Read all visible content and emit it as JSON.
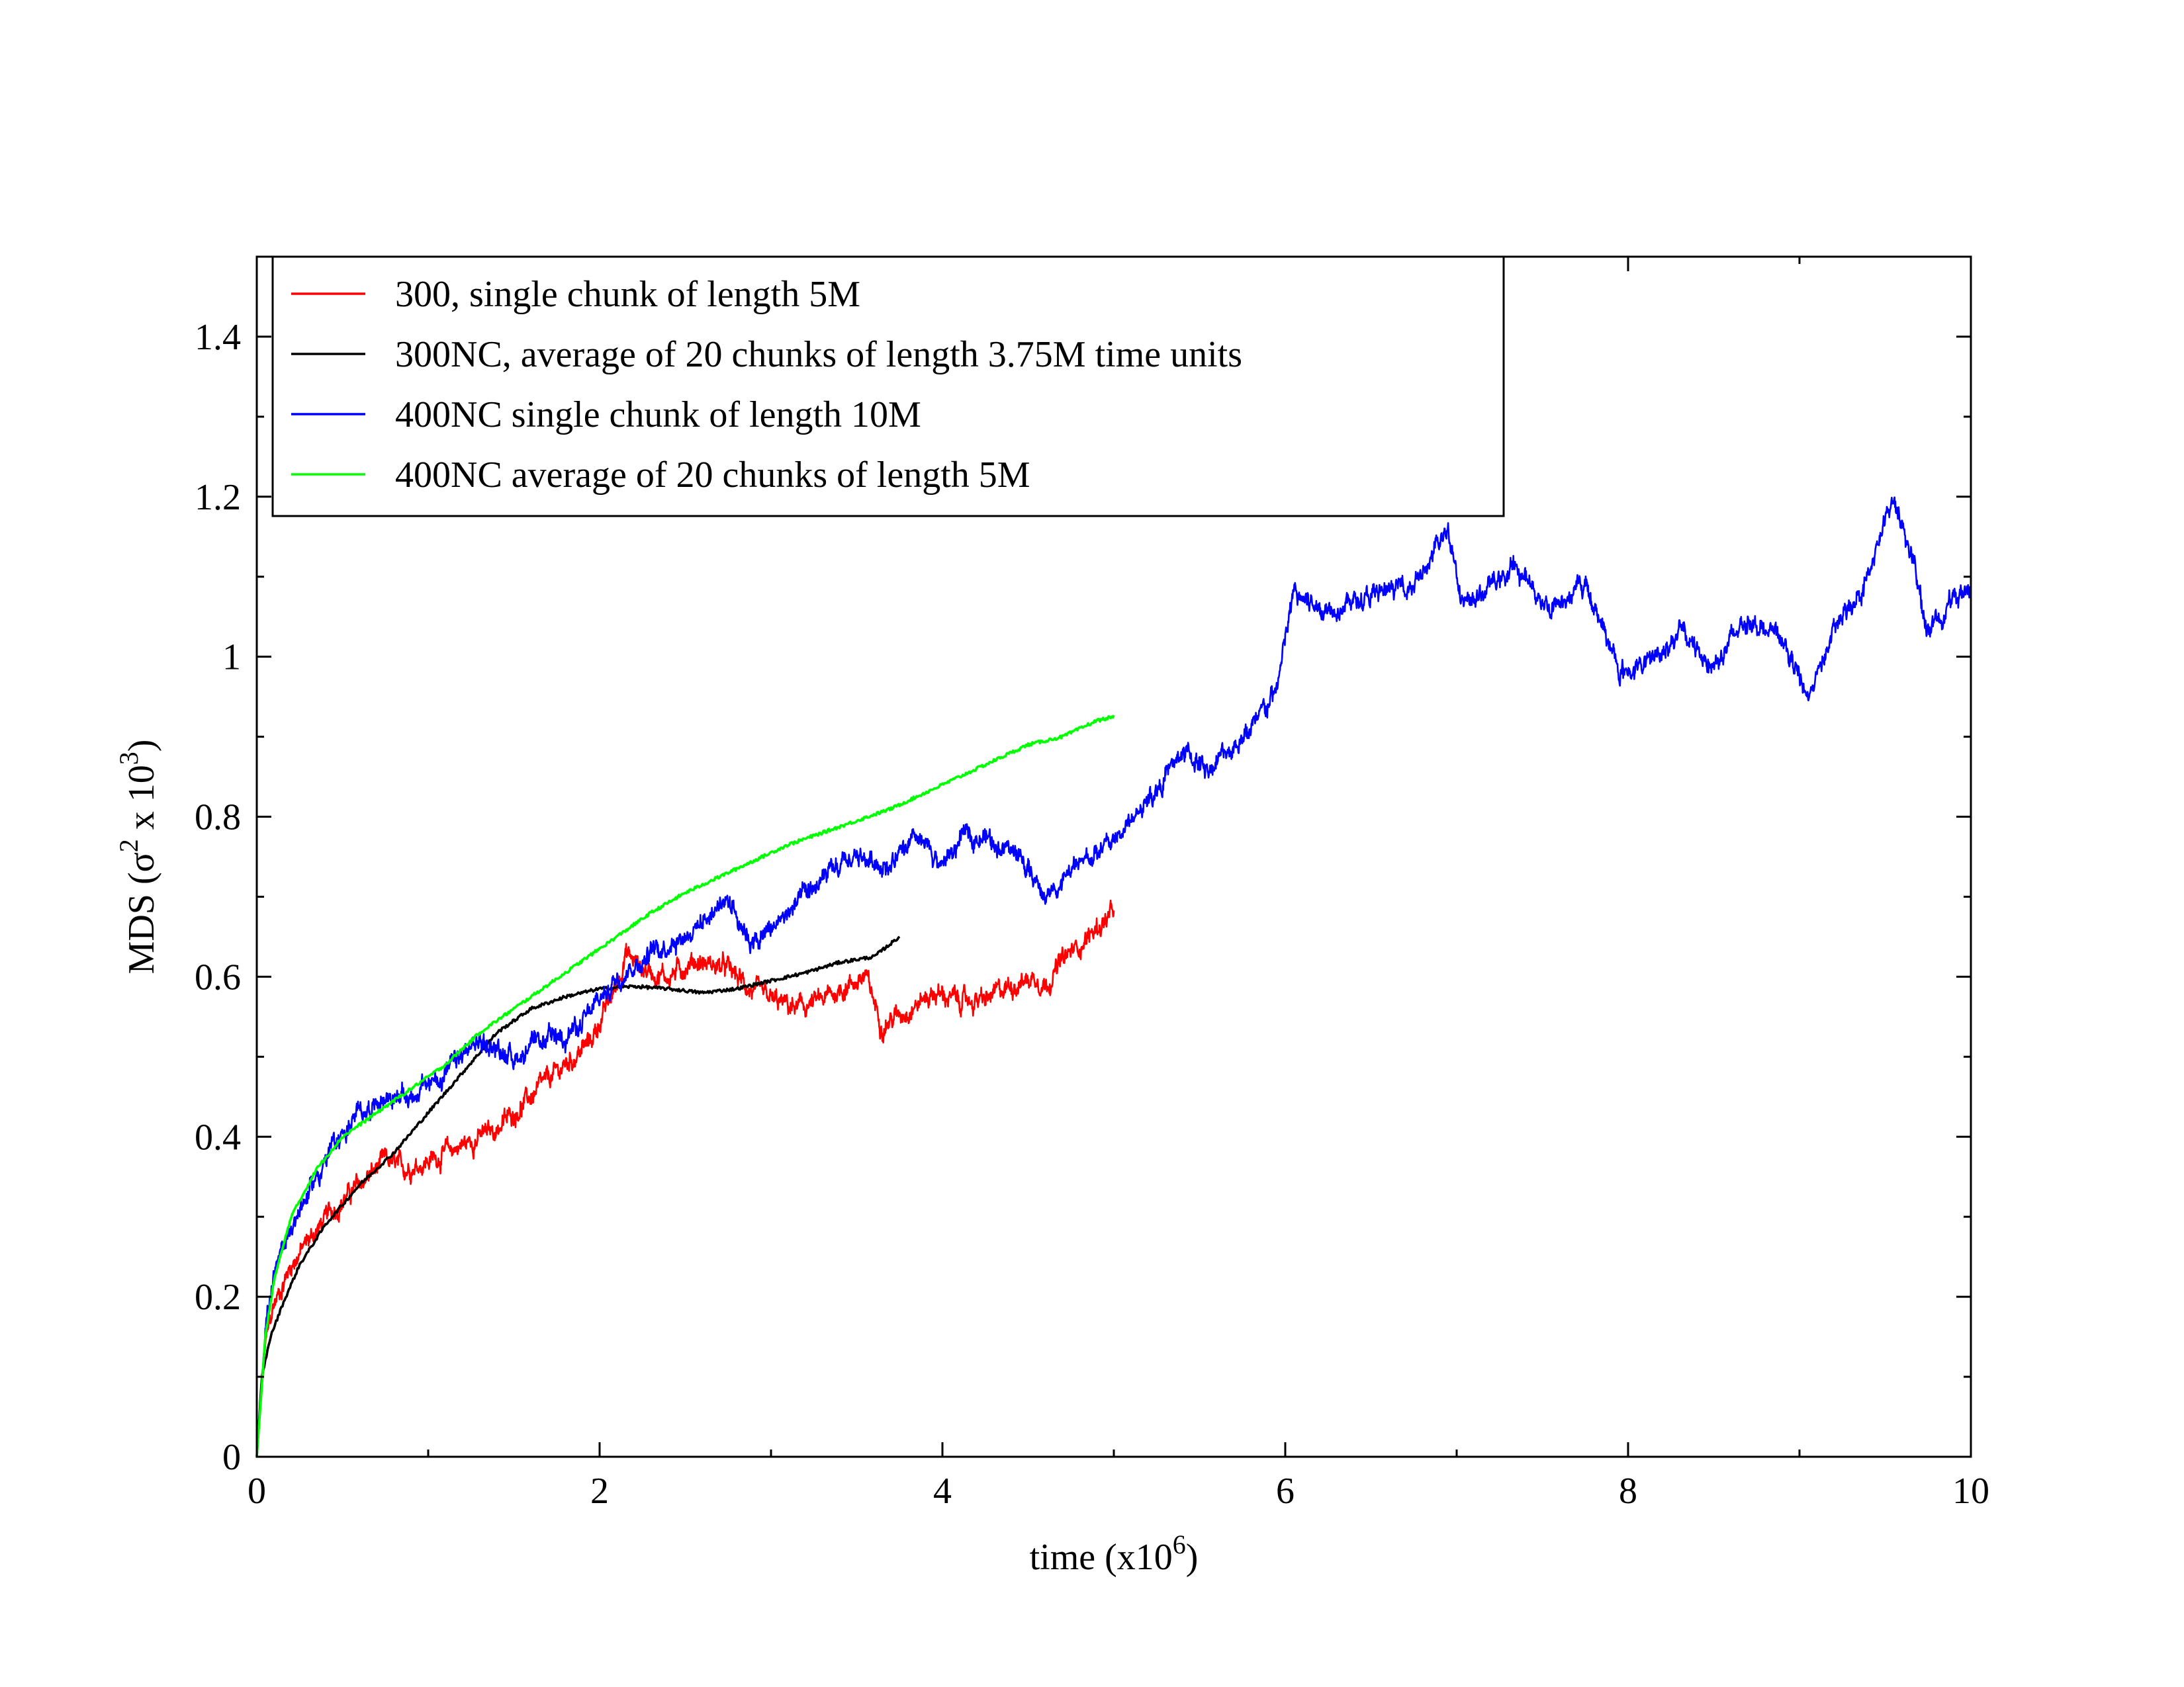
{
  "chart_data": {
    "type": "line",
    "title": "",
    "xlabel": "time (x10^6)",
    "ylabel": "MDS (σ^2 x 10^3)",
    "xlim": [
      0,
      10
    ],
    "ylim": [
      0,
      1.5
    ],
    "xticks": [
      0,
      2,
      4,
      6,
      8,
      10
    ],
    "yticks": [
      0,
      0.2,
      0.4,
      0.6,
      0.8,
      1,
      1.2,
      1.4
    ],
    "xtick_labels": [
      "0",
      "2",
      "4",
      "6",
      "8",
      "10"
    ],
    "ytick_labels": [
      "0",
      "0.2",
      "0.4",
      "0.6",
      "0.8",
      "1",
      "1.2",
      "1.4"
    ],
    "grid": false,
    "legend_position": "top-left",
    "series": [
      {
        "name": "300, single chunk of length 5M",
        "color": "#ff0000",
        "noisy": true,
        "x": [
          0,
          0.05,
          0.1,
          0.2,
          0.3,
          0.45,
          0.6,
          0.75,
          0.85,
          1.0,
          1.2,
          1.4,
          1.6,
          1.8,
          1.95,
          2.1,
          2.15,
          2.25,
          2.4,
          2.55,
          2.75,
          2.9,
          3.0,
          3.15,
          3.3,
          3.45,
          3.55,
          3.65,
          3.8,
          3.95,
          4.1,
          4.25,
          4.4,
          4.55,
          4.6,
          4.7,
          4.8,
          4.9,
          5.0
        ],
        "y": [
          0,
          0.14,
          0.19,
          0.24,
          0.27,
          0.31,
          0.34,
          0.37,
          0.36,
          0.37,
          0.39,
          0.41,
          0.45,
          0.49,
          0.52,
          0.59,
          0.63,
          0.61,
          0.6,
          0.62,
          0.61,
          0.58,
          0.57,
          0.56,
          0.57,
          0.59,
          0.6,
          0.54,
          0.56,
          0.58,
          0.57,
          0.57,
          0.59,
          0.6,
          0.59,
          0.62,
          0.64,
          0.66,
          0.68
        ]
      },
      {
        "name": "300NC, average of 20 chunks of length 3.75M time units",
        "color": "#000000",
        "noisy": false,
        "x": [
          0,
          0.03,
          0.08,
          0.15,
          0.25,
          0.4,
          0.6,
          0.8,
          1.0,
          1.2,
          1.4,
          1.6,
          1.8,
          2.0,
          2.2,
          2.4,
          2.6,
          2.8,
          3.0,
          3.2,
          3.4,
          3.6,
          3.75
        ],
        "y": [
          0,
          0.1,
          0.15,
          0.19,
          0.24,
          0.29,
          0.34,
          0.38,
          0.43,
          0.48,
          0.53,
          0.56,
          0.575,
          0.585,
          0.588,
          0.585,
          0.58,
          0.585,
          0.595,
          0.605,
          0.618,
          0.625,
          0.65
        ]
      },
      {
        "name": "400NC single chunk of length 10M",
        "color": "#0000ff",
        "noisy": true,
        "x": [
          0,
          0.05,
          0.1,
          0.2,
          0.3,
          0.45,
          0.6,
          0.75,
          0.9,
          1.1,
          1.3,
          1.5,
          1.7,
          1.9,
          2.1,
          2.3,
          2.55,
          2.75,
          2.9,
          3.1,
          3.3,
          3.5,
          3.7,
          3.85,
          4.0,
          4.15,
          4.3,
          4.45,
          4.6,
          4.8,
          5.0,
          5.2,
          5.4,
          5.55,
          5.7,
          5.85,
          5.95,
          6.05,
          6.2,
          6.4,
          6.6,
          6.8,
          6.95,
          7.05,
          7.2,
          7.35,
          7.55,
          7.75,
          7.85,
          7.95,
          8.1,
          8.3,
          8.5,
          8.7,
          8.9,
          9.05,
          9.2,
          9.4,
          9.55,
          9.65,
          9.75,
          9.85,
          10.0
        ],
        "y": [
          0,
          0.17,
          0.22,
          0.29,
          0.33,
          0.39,
          0.43,
          0.45,
          0.45,
          0.48,
          0.52,
          0.5,
          0.52,
          0.54,
          0.6,
          0.63,
          0.66,
          0.7,
          0.64,
          0.68,
          0.72,
          0.75,
          0.74,
          0.77,
          0.74,
          0.78,
          0.77,
          0.75,
          0.7,
          0.74,
          0.77,
          0.82,
          0.88,
          0.86,
          0.89,
          0.92,
          0.96,
          1.08,
          1.06,
          1.07,
          1.08,
          1.1,
          1.16,
          1.06,
          1.09,
          1.11,
          1.06,
          1.09,
          1.04,
          0.98,
          0.99,
          1.03,
          0.99,
          1.05,
          1.02,
          0.95,
          1.03,
          1.1,
          1.2,
          1.13,
          1.03,
          1.06,
          1.09
        ]
      },
      {
        "name": "400NC average of 20 chunks of length 5M",
        "color": "#00ff00",
        "noisy": false,
        "x": [
          0,
          0.05,
          0.1,
          0.2,
          0.35,
          0.5,
          0.7,
          0.9,
          1.1,
          1.3,
          1.5,
          1.7,
          1.9,
          2.1,
          2.3,
          2.5,
          2.7,
          2.9,
          3.1,
          3.3,
          3.5,
          3.7,
          3.9,
          4.1,
          4.3,
          4.5,
          4.7,
          4.9,
          5.0
        ],
        "y": [
          0,
          0.15,
          0.22,
          0.3,
          0.36,
          0.4,
          0.43,
          0.46,
          0.49,
          0.53,
          0.56,
          0.59,
          0.62,
          0.65,
          0.68,
          0.705,
          0.725,
          0.745,
          0.765,
          0.78,
          0.795,
          0.81,
          0.83,
          0.85,
          0.87,
          0.89,
          0.9,
          0.92,
          0.925
        ]
      }
    ]
  }
}
